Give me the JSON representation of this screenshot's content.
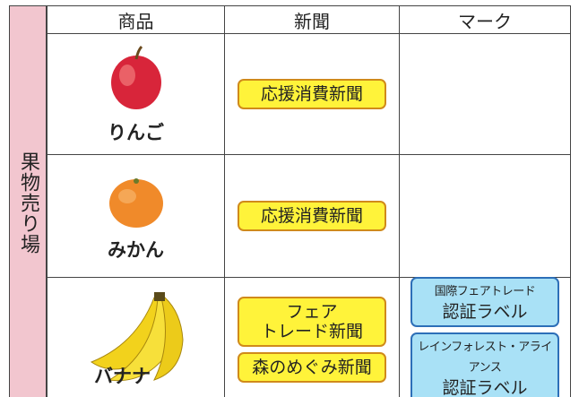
{
  "side_label": "果物売り場",
  "table": {
    "headers": [
      "商品",
      "新聞",
      "マーク"
    ],
    "rows": [
      {
        "product": "りんご",
        "newspapers": [
          [
            "応援消費新聞"
          ]
        ],
        "marks": []
      },
      {
        "product": "みかん",
        "newspapers": [
          [
            "応援消費新聞"
          ]
        ],
        "marks": []
      },
      {
        "product": "バナナ",
        "newspapers": [
          [
            "フェア",
            "トレード新聞"
          ],
          [
            "森のめぐみ新聞"
          ]
        ],
        "marks": [
          [
            "国際フェアトレード",
            "認証ラベル"
          ],
          [
            "レインフォレスト・アライアンス",
            "認証ラベル"
          ]
        ]
      }
    ]
  }
}
